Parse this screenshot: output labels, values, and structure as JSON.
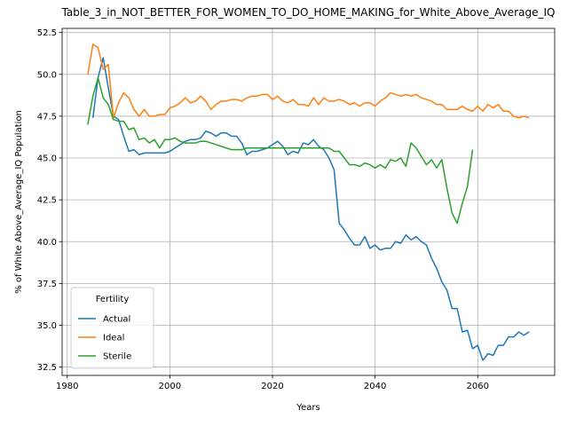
{
  "chart_data": {
    "type": "line",
    "title": "Table_3_in_NOT_BETTER_FOR_WOMEN_TO_DO_HOME_MAKING_for_White_Above_Average_IQ",
    "xlabel": "Years",
    "ylabel": "% of White Above_Average_IQ Population",
    "xlim": [
      1979,
      2075
    ],
    "ylim": [
      32.0,
      52.75
    ],
    "xticks": [
      1980,
      2000,
      2020,
      2040,
      2060
    ],
    "yticks": [
      32.5,
      35.0,
      37.5,
      40.0,
      42.5,
      45.0,
      47.5,
      50.0,
      52.5
    ],
    "xtick_labels": [
      "1980",
      "2000",
      "2020",
      "2040",
      "2060"
    ],
    "ytick_labels": [
      "32.5",
      "35.0",
      "37.5",
      "40.0",
      "42.5",
      "45.0",
      "47.5",
      "50.0",
      "52.5"
    ],
    "grid": true,
    "legend": {
      "title": "Fertility",
      "placement": "lower-left"
    },
    "series": [
      {
        "name": "Actual",
        "color": "#1f77b4",
        "x": [
          1985,
          1986,
          1987,
          1988,
          1989,
          1990,
          1991,
          1992,
          1993,
          1994,
          1995,
          1996,
          1997,
          1998,
          1999,
          2000,
          2001,
          2002,
          2003,
          2004,
          2005,
          2006,
          2007,
          2008,
          2009,
          2010,
          2011,
          2012,
          2013,
          2014,
          2015,
          2016,
          2017,
          2018,
          2019,
          2020,
          2021,
          2022,
          2023,
          2024,
          2025,
          2026,
          2027,
          2028,
          2029,
          2030,
          2031,
          2032,
          2033,
          2034,
          2035,
          2036,
          2037,
          2038,
          2039,
          2040,
          2041,
          2042,
          2043,
          2044,
          2045,
          2046,
          2047,
          2048,
          2049,
          2050,
          2051,
          2052,
          2053,
          2054,
          2055,
          2056,
          2057,
          2058,
          2059,
          2060,
          2061,
          2062,
          2063,
          2064,
          2065,
          2066,
          2067,
          2068,
          2069,
          2070
        ],
        "values": [
          47.4,
          49.8,
          51.0,
          49.2,
          47.5,
          47.3,
          46.3,
          45.4,
          45.5,
          45.2,
          45.3,
          45.3,
          45.3,
          45.3,
          45.3,
          45.4,
          45.6,
          45.8,
          46.0,
          46.1,
          46.1,
          46.2,
          46.6,
          46.5,
          46.3,
          46.5,
          46.5,
          46.3,
          46.3,
          45.9,
          45.2,
          45.4,
          45.4,
          45.5,
          45.6,
          45.8,
          46.0,
          45.7,
          45.2,
          45.4,
          45.3,
          45.9,
          45.8,
          46.1,
          45.7,
          45.5,
          45.0,
          44.3,
          41.1,
          40.7,
          40.2,
          39.8,
          39.8,
          40.3,
          39.6,
          39.8,
          39.5,
          39.6,
          39.6,
          40.0,
          39.9,
          40.4,
          40.1,
          40.3,
          40.0,
          39.8,
          39.0,
          38.4,
          37.6,
          37.1,
          36.0,
          36.0,
          34.6,
          34.7,
          33.6,
          33.8,
          32.9,
          33.3,
          33.2,
          33.8,
          33.8,
          34.3,
          34.3,
          34.6,
          34.4,
          34.6
        ]
      },
      {
        "name": "Ideal",
        "color": "#ff7f0e",
        "x": [
          1984,
          1985,
          1986,
          1987,
          1988,
          1989,
          1990,
          1991,
          1992,
          1993,
          1994,
          1995,
          1996,
          1997,
          1998,
          1999,
          2000,
          2001,
          2002,
          2003,
          2004,
          2005,
          2006,
          2007,
          2008,
          2009,
          2010,
          2011,
          2012,
          2013,
          2014,
          2015,
          2016,
          2017,
          2018,
          2019,
          2020,
          2021,
          2022,
          2023,
          2024,
          2025,
          2026,
          2027,
          2028,
          2029,
          2030,
          2031,
          2032,
          2033,
          2034,
          2035,
          2036,
          2037,
          2038,
          2039,
          2040,
          2041,
          2042,
          2043,
          2044,
          2045,
          2046,
          2047,
          2048,
          2049,
          2050,
          2051,
          2052,
          2053,
          2054,
          2055,
          2056,
          2057,
          2058,
          2059,
          2060,
          2061,
          2062,
          2063,
          2064,
          2065,
          2066,
          2067,
          2068,
          2069,
          2070
        ],
        "values": [
          50.0,
          51.8,
          51.6,
          50.3,
          50.6,
          47.4,
          48.3,
          48.9,
          48.6,
          47.9,
          47.5,
          47.9,
          47.5,
          47.5,
          47.6,
          47.6,
          48.0,
          48.1,
          48.3,
          48.6,
          48.3,
          48.4,
          48.7,
          48.4,
          47.9,
          48.2,
          48.4,
          48.4,
          48.5,
          48.5,
          48.4,
          48.6,
          48.7,
          48.7,
          48.8,
          48.8,
          48.5,
          48.7,
          48.4,
          48.3,
          48.5,
          48.2,
          48.2,
          48.1,
          48.6,
          48.2,
          48.6,
          48.4,
          48.4,
          48.5,
          48.4,
          48.2,
          48.3,
          48.1,
          48.3,
          48.3,
          48.1,
          48.4,
          48.6,
          48.9,
          48.8,
          48.7,
          48.8,
          48.7,
          48.8,
          48.6,
          48.5,
          48.4,
          48.2,
          48.2,
          47.9,
          47.9,
          47.9,
          48.1,
          47.9,
          47.8,
          48.1,
          47.8,
          48.2,
          48.0,
          48.2,
          47.8,
          47.8,
          47.5,
          47.4,
          47.5,
          47.4
        ]
      },
      {
        "name": "Sterile",
        "color": "#2ca02c",
        "x": [
          1984,
          1985,
          1986,
          1987,
          1988,
          1989,
          1990,
          1991,
          1992,
          1993,
          1994,
          1995,
          1996,
          1997,
          1998,
          1999,
          2000,
          2001,
          2002,
          2003,
          2004,
          2005,
          2006,
          2007,
          2008,
          2009,
          2010,
          2011,
          2012,
          2013,
          2014,
          2015,
          2016,
          2017,
          2018,
          2019,
          2020,
          2021,
          2022,
          2023,
          2024,
          2025,
          2026,
          2027,
          2028,
          2029,
          2030,
          2031,
          2032,
          2033,
          2034,
          2035,
          2036,
          2037,
          2038,
          2039,
          2040,
          2041,
          2042,
          2043,
          2044,
          2045,
          2046,
          2047,
          2048,
          2049,
          2050,
          2051,
          2052,
          2053,
          2054,
          2055,
          2056,
          2057,
          2058,
          2059
        ],
        "values": [
          47.0,
          48.7,
          49.8,
          48.6,
          48.2,
          47.3,
          47.2,
          47.2,
          46.7,
          46.8,
          46.1,
          46.2,
          45.9,
          46.1,
          45.6,
          46.1,
          46.1,
          46.2,
          46.0,
          45.9,
          45.9,
          45.9,
          46.0,
          46.0,
          45.9,
          45.8,
          45.7,
          45.6,
          45.5,
          45.5,
          45.5,
          45.6,
          45.6,
          45.6,
          45.6,
          45.6,
          45.6,
          45.6,
          45.6,
          45.6,
          45.6,
          45.6,
          45.6,
          45.6,
          45.6,
          45.6,
          45.6,
          45.6,
          45.4,
          45.4,
          45.0,
          44.6,
          44.6,
          44.5,
          44.7,
          44.6,
          44.4,
          44.6,
          44.4,
          44.9,
          44.8,
          45.0,
          44.5,
          45.9,
          45.6,
          45.1,
          44.6,
          44.9,
          44.4,
          44.9,
          43.2,
          41.7,
          41.1,
          42.3,
          43.3,
          45.5
        ]
      }
    ]
  }
}
